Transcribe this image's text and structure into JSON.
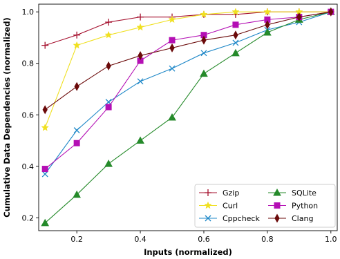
{
  "chart_data": {
    "type": "line",
    "title": "",
    "xlabel": "Inputs (normalized)",
    "ylabel": "Cumulative Data Dependencies (normalized)",
    "xlim": [
      0.08,
      1.02
    ],
    "ylim": [
      0.15,
      1.03
    ],
    "xticks": [
      "0.2",
      "0.4",
      "0.6",
      "0.8",
      "1.0"
    ],
    "yticks": [
      "0.2",
      "0.4",
      "0.6",
      "0.8",
      "1.0"
    ],
    "grid": false,
    "legend_position": "lower-right",
    "x": [
      0.1,
      0.2,
      0.3,
      0.4,
      0.5,
      0.6,
      0.7,
      0.8,
      0.9,
      1.0
    ],
    "series": [
      {
        "name": "Gzip",
        "color": "#a50f2d",
        "marker": "plus",
        "values": [
          0.87,
          0.91,
          0.96,
          0.98,
          0.98,
          0.99,
          0.99,
          1.0,
          1.0,
          1.0
        ]
      },
      {
        "name": "Curl",
        "color": "#f0e020",
        "marker": "star",
        "values": [
          0.55,
          0.87,
          0.91,
          0.94,
          0.97,
          0.99,
          1.0,
          1.0,
          1.0,
          1.0
        ]
      },
      {
        "name": "Cppcheck",
        "color": "#1f88c8",
        "marker": "x",
        "values": [
          0.37,
          0.54,
          0.65,
          0.73,
          0.78,
          0.84,
          0.88,
          0.93,
          0.96,
          1.0
        ]
      },
      {
        "name": "SQLite",
        "color": "#258a2a",
        "marker": "triangle",
        "values": [
          0.18,
          0.29,
          0.41,
          0.5,
          0.59,
          0.76,
          0.84,
          0.92,
          0.97,
          1.0
        ]
      },
      {
        "name": "Python",
        "color": "#b40fb4",
        "marker": "square",
        "values": [
          0.39,
          0.49,
          0.63,
          0.81,
          0.89,
          0.91,
          0.95,
          0.97,
          0.98,
          1.0
        ]
      },
      {
        "name": "Clang",
        "color": "#6b0a0a",
        "marker": "diamond",
        "values": [
          0.62,
          0.71,
          0.79,
          0.83,
          0.86,
          0.89,
          0.91,
          0.95,
          0.98,
          1.0
        ]
      }
    ]
  }
}
